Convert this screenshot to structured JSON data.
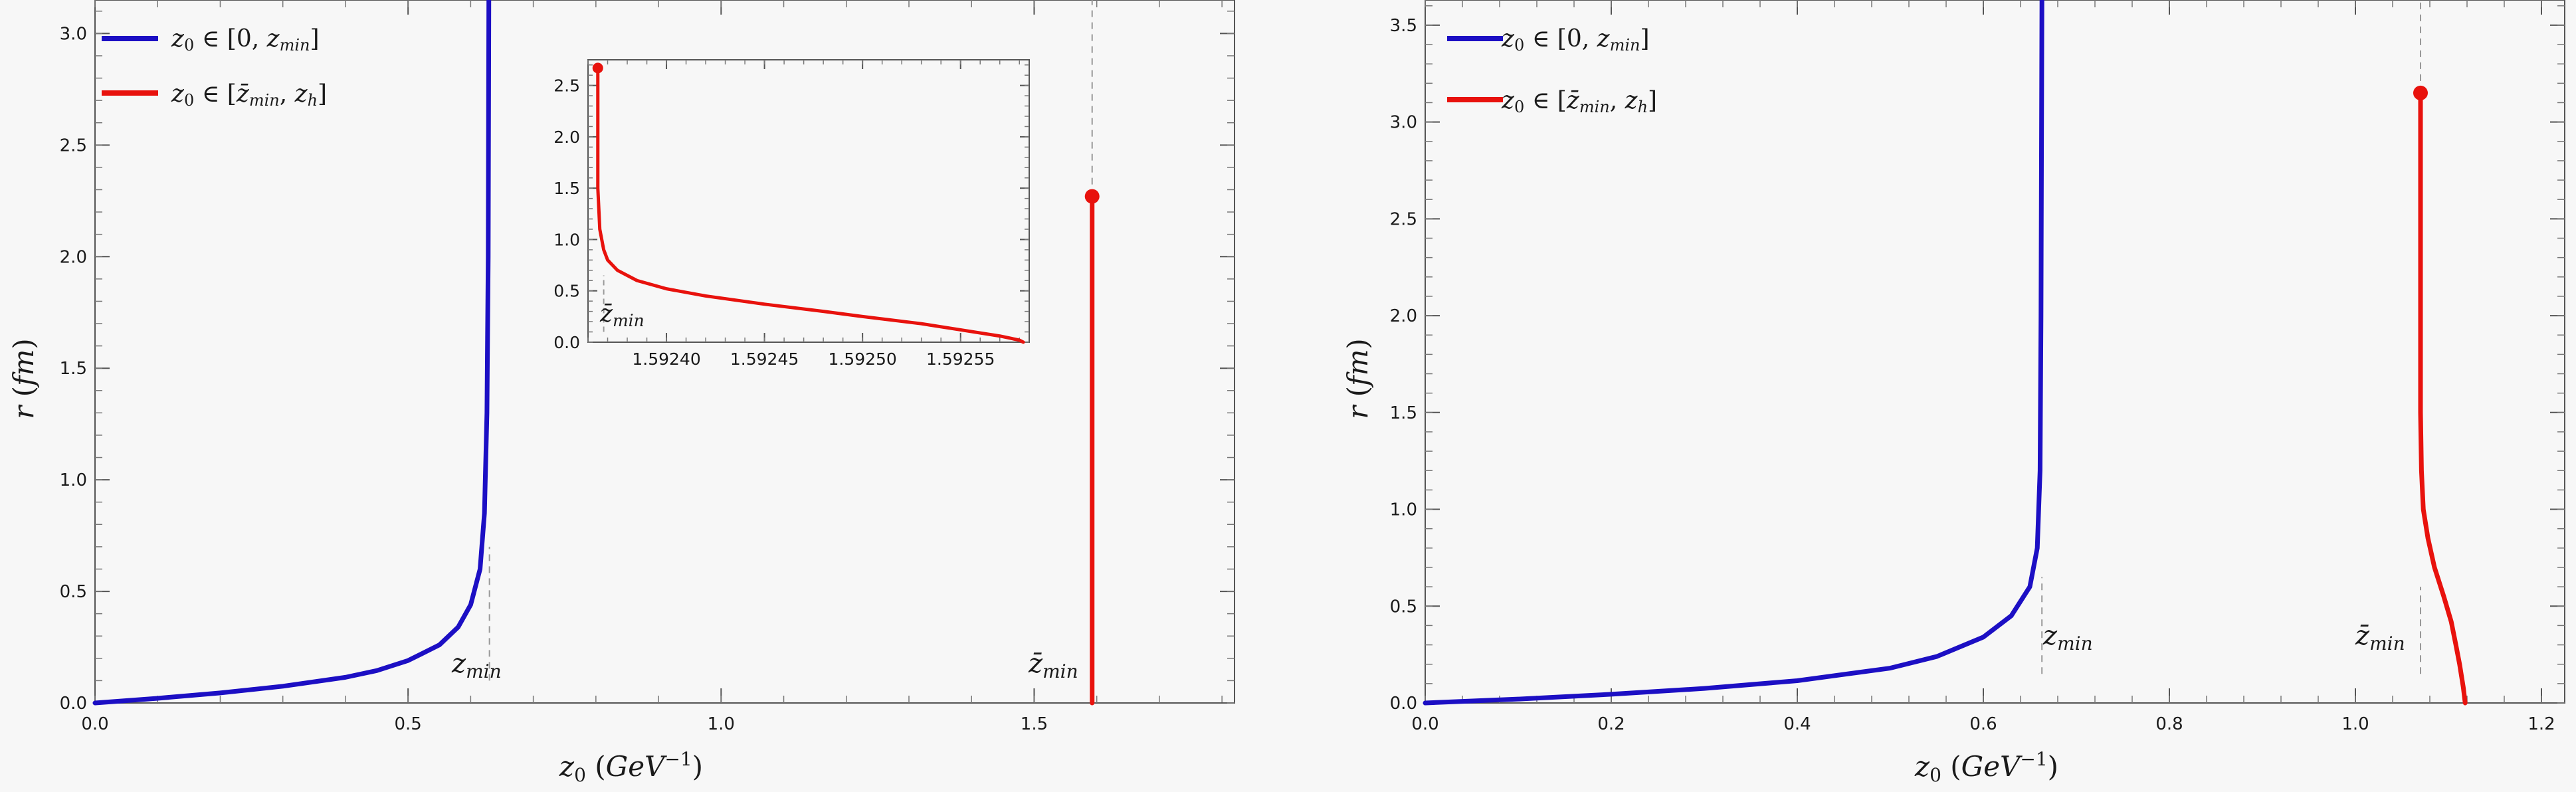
{
  "chart_data": [
    {
      "type": "line",
      "xlabel": "z₀ (GeV⁻¹)",
      "ylabel": "r (fm)",
      "xlim": [
        0,
        1.82
      ],
      "ylim": [
        0,
        3.15
      ],
      "xticks": [
        0.0,
        0.5,
        1.0,
        1.5
      ],
      "xtick_labels": [
        "0.0",
        "0.5",
        "1.0",
        "1.5"
      ],
      "yticks": [
        0.0,
        0.5,
        1.0,
        1.5,
        2.0,
        2.5,
        3.0
      ],
      "ytick_labels": [
        "0.0",
        "0.5",
        "1.0",
        "1.5",
        "2.0",
        "2.5",
        "3.0"
      ],
      "grid": false,
      "legend_position": "top-left",
      "legend": [
        {
          "label": "z₀ ∈ [0, z_min]",
          "color": "#1c0fc4"
        },
        {
          "label": "z₀ ∈ [z̄_min, z_h]",
          "color": "#e8120d"
        }
      ],
      "series": [
        {
          "name": "z₀ ∈ [0, z_min]",
          "color": "#1c0fc4",
          "points": [
            [
              0,
              0
            ],
            [
              0.1,
              0.021
            ],
            [
              0.2,
              0.045
            ],
            [
              0.3,
              0.075
            ],
            [
              0.4,
              0.115
            ],
            [
              0.45,
              0.145
            ],
            [
              0.5,
              0.19
            ],
            [
              0.55,
              0.26
            ],
            [
              0.58,
              0.34
            ],
            [
              0.6,
              0.44
            ],
            [
              0.615,
              0.6
            ],
            [
              0.622,
              0.85
            ],
            [
              0.626,
              1.3
            ],
            [
              0.628,
              2.0
            ],
            [
              0.629,
              3.15
            ]
          ]
        },
        {
          "name": "z₀ ∈ [z̄_min, z_h]",
          "color": "#e8120d",
          "points": [
            [
              1.5926,
              0
            ],
            [
              1.5926,
              2.27
            ]
          ],
          "endpoint": [
            1.5926,
            2.27
          ]
        }
      ],
      "vlines": [
        {
          "x": 0.63,
          "ymin": 0.1,
          "ymax": 0.7,
          "label": "z_min"
        },
        {
          "x": 1.5926,
          "ymin": 2.27,
          "ymax": 3.15,
          "label": "z̄_min"
        }
      ],
      "inset": {
        "type": "line",
        "xlim": [
          1.59236,
          1.592585
        ],
        "ylim": [
          0,
          2.75
        ],
        "xticks": [
          1.5924,
          1.59245,
          1.5925,
          1.59255
        ],
        "xtick_labels": [
          "1.59240",
          "1.59245",
          "1.59250",
          "1.59255"
        ],
        "yticks": [
          0.0,
          0.5,
          1.0,
          1.5,
          2.0,
          2.5
        ],
        "ytick_labels": [
          "0.0",
          "0.5",
          "1.0",
          "1.5",
          "2.0",
          "2.5"
        ],
        "color": "#e8120d",
        "points": [
          [
            1.592365,
            2.67
          ],
          [
            1.592365,
            1.5
          ],
          [
            1.592366,
            1.1
          ],
          [
            1.592368,
            0.9
          ],
          [
            1.59237,
            0.8
          ],
          [
            1.592375,
            0.7
          ],
          [
            1.592385,
            0.6
          ],
          [
            1.5924,
            0.52
          ],
          [
            1.59242,
            0.45
          ],
          [
            1.59245,
            0.37
          ],
          [
            1.59248,
            0.3
          ],
          [
            1.5925,
            0.25
          ],
          [
            1.59253,
            0.18
          ],
          [
            1.59255,
            0.12
          ],
          [
            1.59257,
            0.06
          ],
          [
            1.59258,
            0.02
          ],
          [
            1.592582,
            0
          ]
        ],
        "endpoint": [
          1.592365,
          2.67
        ],
        "vline": {
          "x": 1.592368,
          "ymin": 0.1,
          "ymax": 0.65,
          "label": "z̄_min"
        }
      }
    },
    {
      "type": "line",
      "xlabel": "z₀ (GeV⁻¹)",
      "ylabel": "r (fm)",
      "xlim": [
        0,
        1.225
      ],
      "ylim": [
        0,
        3.63
      ],
      "xticks": [
        0.0,
        0.2,
        0.4,
        0.6,
        0.8,
        1.0,
        1.2
      ],
      "xtick_labels": [
        "0.0",
        "0.2",
        "0.4",
        "0.6",
        "0.8",
        "1.0",
        "1.2"
      ],
      "yticks": [
        0.0,
        0.5,
        1.0,
        1.5,
        2.0,
        2.5,
        3.0,
        3.5
      ],
      "ytick_labels": [
        "0.0",
        "0.5",
        "1.0",
        "1.5",
        "2.0",
        "2.5",
        "3.0",
        "3.5"
      ],
      "grid": false,
      "legend_position": "top-left",
      "legend": [
        {
          "label": "z₀ ∈ [0, z_min]",
          "color": "#1c0fc4"
        },
        {
          "label": "z₀ ∈ [z̄_min, z_h]",
          "color": "#e8120d"
        }
      ],
      "series": [
        {
          "name": "z₀ ∈ [0, z_min]",
          "color": "#1c0fc4",
          "points": [
            [
              0,
              0
            ],
            [
              0.1,
              0.02
            ],
            [
              0.2,
              0.045
            ],
            [
              0.3,
              0.075
            ],
            [
              0.4,
              0.115
            ],
            [
              0.5,
              0.18
            ],
            [
              0.55,
              0.24
            ],
            [
              0.6,
              0.34
            ],
            [
              0.63,
              0.45
            ],
            [
              0.65,
              0.6
            ],
            [
              0.658,
              0.8
            ],
            [
              0.661,
              1.2
            ],
            [
              0.662,
              2.0
            ],
            [
              0.663,
              3.63
            ]
          ]
        },
        {
          "name": "z₀ ∈ [z̄_min, z_h]",
          "color": "#e8120d",
          "points": [
            [
              1.07,
              3.15
            ],
            [
              1.07,
              1.5
            ],
            [
              1.071,
              1.2
            ],
            [
              1.073,
              1.0
            ],
            [
              1.078,
              0.85
            ],
            [
              1.085,
              0.7
            ],
            [
              1.095,
              0.55
            ],
            [
              1.103,
              0.42
            ],
            [
              1.108,
              0.3
            ],
            [
              1.112,
              0.2
            ],
            [
              1.116,
              0.08
            ],
            [
              1.118,
              0
            ]
          ],
          "endpoint": [
            1.07,
            3.15
          ]
        }
      ],
      "vlines": [
        {
          "x": 0.663,
          "ymin": 0.15,
          "ymax": 0.65,
          "label": "z_min"
        },
        {
          "x": 1.07,
          "ymin": 0.15,
          "ymax": 0.6,
          "label": "z̄_min"
        },
        {
          "x": 1.07,
          "ymin": 3.15,
          "ymax": 3.63,
          "label": ""
        }
      ]
    }
  ]
}
